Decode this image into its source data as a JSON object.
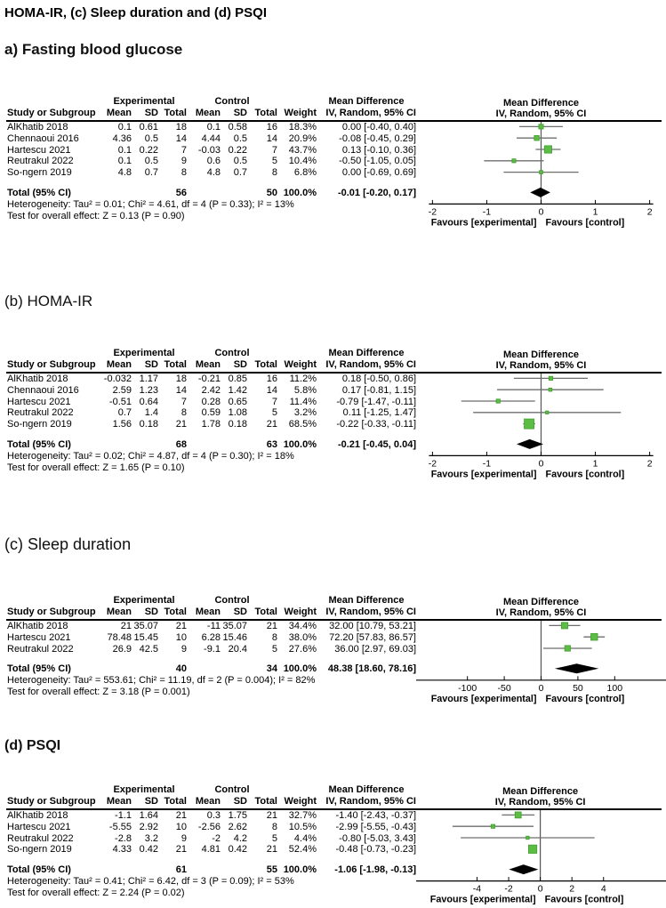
{
  "figure_title": "HOMA-IR, (c) Sleep duration and (d) PSQI",
  "colors": {
    "square_fill": "#5bbd44",
    "square_stroke": "#3f9e2c",
    "ci_line": "#6e6e6e",
    "zero_line": "#555555",
    "axis": "#000000",
    "diamond": "#000000"
  },
  "panels": [
    {
      "heading": "a) Fasting blood glucose",
      "group_headers": {
        "experimental": "Experimental",
        "control": "Control",
        "mean_difference": "Mean Difference"
      },
      "col_headers": [
        "Study or Subgroup",
        "Mean",
        "SD",
        "Total",
        "Mean",
        "SD",
        "Total",
        "Weight",
        "IV, Random, 95% CI"
      ],
      "plot_header": [
        "Mean Difference",
        "IV, Random, 95% CI"
      ],
      "rows": [
        {
          "study": "AlKhatib 2018",
          "mean_e": "0.1",
          "sd_e": "0.61",
          "total_e": "18",
          "mean_c": "0.1",
          "sd_c": "0.58",
          "total_c": "16",
          "weight": "18.3%",
          "ci": "0.00 [-0.40, 0.40]"
        },
        {
          "study": "Chennaoui 2016",
          "mean_e": "4.36",
          "sd_e": "0.5",
          "total_e": "14",
          "mean_c": "4.44",
          "sd_c": "0.5",
          "total_c": "14",
          "weight": "20.9%",
          "ci": "-0.08 [-0.45, 0.29]"
        },
        {
          "study": "Hartescu 2021",
          "mean_e": "0.1",
          "sd_e": "0.22",
          "total_e": "7",
          "mean_c": "-0.03",
          "sd_c": "0.22",
          "total_c": "7",
          "weight": "43.7%",
          "ci": "0.13 [-0.10, 0.36]"
        },
        {
          "study": "Reutrakul 2022",
          "mean_e": "0.1",
          "sd_e": "0.5",
          "total_e": "9",
          "mean_c": "0.6",
          "sd_c": "0.5",
          "total_c": "5",
          "weight": "10.4%",
          "ci": "-0.50 [-1.05, 0.05]"
        },
        {
          "study": "So-ngern 2019",
          "mean_e": "4.8",
          "sd_e": "0.7",
          "total_e": "8",
          "mean_c": "4.8",
          "sd_c": "0.7",
          "total_c": "8",
          "weight": "6.8%",
          "ci": "0.00 [-0.69, 0.69]"
        }
      ],
      "total": {
        "label": "Total (95% CI)",
        "total_e": "56",
        "total_c": "50",
        "weight": "100.0%",
        "ci": "-0.01 [-0.20, 0.17]"
      },
      "heterogeneity": "Heterogeneity: Tau² = 0.01; Chi² = 4.61, df = 4 (P = 0.33); I² = 13%",
      "overall_effect": "Test for overall effect: Z = 0.13 (P = 0.90)"
    },
    {
      "heading": "(b) HOMA-IR",
      "group_headers": {
        "experimental": "Experimental",
        "control": "Control",
        "mean_difference": "Mean Difference"
      },
      "col_headers": [
        "Study or Subgroup",
        "Mean",
        "SD",
        "Total",
        "Mean",
        "SD",
        "Total",
        "Weight",
        "IV, Random, 95% CI"
      ],
      "plot_header": [
        "Mean Difference",
        "IV, Random, 95% CI"
      ],
      "rows": [
        {
          "study": "AlKhatib 2018",
          "mean_e": "-0.032",
          "sd_e": "1.17",
          "total_e": "18",
          "mean_c": "-0.21",
          "sd_c": "0.85",
          "total_c": "16",
          "weight": "11.2%",
          "ci": "0.18 [-0.50, 0.86]"
        },
        {
          "study": "Chennaoui 2016",
          "mean_e": "2.59",
          "sd_e": "1.23",
          "total_e": "14",
          "mean_c": "2.42",
          "sd_c": "1.42",
          "total_c": "14",
          "weight": "5.8%",
          "ci": "0.17 [-0.81, 1.15]"
        },
        {
          "study": "Hartescu 2021",
          "mean_e": "-0.51",
          "sd_e": "0.64",
          "total_e": "7",
          "mean_c": "0.28",
          "sd_c": "0.65",
          "total_c": "7",
          "weight": "11.4%",
          "ci": "-0.79 [-1.47, -0.11]"
        },
        {
          "study": "Reutrakul 2022",
          "mean_e": "0.7",
          "sd_e": "1.4",
          "total_e": "8",
          "mean_c": "0.59",
          "sd_c": "1.08",
          "total_c": "5",
          "weight": "3.2%",
          "ci": "0.11 [-1.25, 1.47]"
        },
        {
          "study": "So-ngern 2019",
          "mean_e": "1.56",
          "sd_e": "0.18",
          "total_e": "21",
          "mean_c": "1.78",
          "sd_c": "0.18",
          "total_c": "21",
          "weight": "68.5%",
          "ci": "-0.22 [-0.33, -0.11]"
        }
      ],
      "total": {
        "label": "Total (95% CI)",
        "total_e": "68",
        "total_c": "63",
        "weight": "100.0%",
        "ci": "-0.21 [-0.45, 0.04]"
      },
      "heterogeneity": "Heterogeneity: Tau² = 0.02; Chi² = 4.87, df = 4 (P = 0.30); I² = 18%",
      "overall_effect": "Test for overall effect: Z = 1.65 (P = 0.10)"
    },
    {
      "heading": "(c) Sleep duration",
      "group_headers": {
        "experimental": "Experimental",
        "control": "Control",
        "mean_difference": "Mean Difference"
      },
      "col_headers": [
        "Study or Subgroup",
        "Mean",
        "SD",
        "Total",
        "Mean",
        "SD",
        "Total",
        "Weight",
        "IV, Random, 95% CI"
      ],
      "plot_header": [
        "Mean Difference",
        "IV, Random, 95% CI"
      ],
      "rows": [
        {
          "study": "AlKhatib 2018",
          "mean_e": "21",
          "sd_e": "35.07",
          "total_e": "21",
          "mean_c": "-11",
          "sd_c": "35.07",
          "total_c": "21",
          "weight": "34.4%",
          "ci": "32.00 [10.79, 53.21]"
        },
        {
          "study": "Hartescu 2021",
          "mean_e": "78.48",
          "sd_e": "15.45",
          "total_e": "10",
          "mean_c": "6.28",
          "sd_c": "15.46",
          "total_c": "8",
          "weight": "38.0%",
          "ci": "72.20 [57.83, 86.57]"
        },
        {
          "study": "Reutrakul 2022",
          "mean_e": "26.9",
          "sd_e": "42.5",
          "total_e": "9",
          "mean_c": "-9.1",
          "sd_c": "20.4",
          "total_c": "5",
          "weight": "27.6%",
          "ci": "36.00 [2.97, 69.03]"
        }
      ],
      "total": {
        "label": "Total (95% CI)",
        "total_e": "40",
        "total_c": "34",
        "weight": "100.0%",
        "ci": "48.38 [18.60, 78.16]"
      },
      "heterogeneity": "Heterogeneity: Tau² = 553.61; Chi² = 11.19, df = 2 (P = 0.004); I² = 82%",
      "overall_effect": "Test for overall effect: Z = 3.18 (P = 0.001)"
    },
    {
      "heading": "(d) PSQI",
      "group_headers": {
        "experimental": "Experimental",
        "control": "Control",
        "mean_difference": "Mean Difference"
      },
      "col_headers": [
        "Study or Subgroup",
        "Mean",
        "SD",
        "Total",
        "Mean",
        "SD",
        "Total",
        "Weight",
        "IV, Random, 95% CI"
      ],
      "plot_header": [
        "Mean Difference",
        "IV, Random, 95% CI"
      ],
      "rows": [
        {
          "study": "AlKhatib 2018",
          "mean_e": "-1.1",
          "sd_e": "1.64",
          "total_e": "21",
          "mean_c": "0.3",
          "sd_c": "1.75",
          "total_c": "21",
          "weight": "32.7%",
          "ci": "-1.40 [-2.43, -0.37]"
        },
        {
          "study": "Hartescu 2021",
          "mean_e": "-5.55",
          "sd_e": "2.92",
          "total_e": "10",
          "mean_c": "-2.56",
          "sd_c": "2.62",
          "total_c": "8",
          "weight": "10.5%",
          "ci": "-2.99 [-5.55, -0.43]"
        },
        {
          "study": "Reutrakul 2022",
          "mean_e": "-2.8",
          "sd_e": "3.2",
          "total_e": "9",
          "mean_c": "-2",
          "sd_c": "4.2",
          "total_c": "5",
          "weight": "4.4%",
          "ci": "-0.80 [-5.03, 3.43]"
        },
        {
          "study": "So-ngern 2019",
          "mean_e": "4.33",
          "sd_e": "0.42",
          "total_e": "21",
          "mean_c": "4.81",
          "sd_c": "0.42",
          "total_c": "21",
          "weight": "52.4%",
          "ci": "-0.48 [-0.73, -0.23]"
        }
      ],
      "total": {
        "label": "Total (95% CI)",
        "total_e": "61",
        "total_c": "55",
        "weight": "100.0%",
        "ci": "-1.06 [-1.98, -0.13]"
      },
      "heterogeneity": "Heterogeneity: Tau² = 0.41; Chi² = 6.42, df = 3 (P = 0.09); I² = 53%",
      "overall_effect": "Test for overall effect: Z = 2.24 (P = 0.02)"
    }
  ],
  "chart_data": [
    {
      "type": "forest",
      "outcome": "Fasting blood glucose",
      "effect_measure": "Mean Difference, IV, Random, 95% CI",
      "entries": [
        {
          "label": "AlKhatib 2018",
          "md": 0.0,
          "lo": -0.4,
          "hi": 0.4,
          "weight_pct": 18.3
        },
        {
          "label": "Chennaoui 2016",
          "md": -0.08,
          "lo": -0.45,
          "hi": 0.29,
          "weight_pct": 20.9
        },
        {
          "label": "Hartescu 2021",
          "md": 0.13,
          "lo": -0.1,
          "hi": 0.36,
          "weight_pct": 43.7
        },
        {
          "label": "Reutrakul 2022",
          "md": -0.5,
          "lo": -1.05,
          "hi": 0.05,
          "weight_pct": 10.4
        },
        {
          "label": "So-ngern 2019",
          "md": 0.0,
          "lo": -0.69,
          "hi": 0.69,
          "weight_pct": 6.8
        }
      ],
      "total": {
        "md": -0.01,
        "lo": -0.2,
        "hi": 0.17
      },
      "xticks": [
        -2,
        -1,
        0,
        1,
        2
      ],
      "xlim": [
        -2.17,
        2.17
      ],
      "axis_edge_to_edge": false,
      "favours_left": "Favours [experimental]",
      "favours_right": "Favours [control]"
    },
    {
      "type": "forest",
      "outcome": "HOMA-IR",
      "effect_measure": "Mean Difference, IV, Random, 95% CI",
      "entries": [
        {
          "label": "AlKhatib 2018",
          "md": 0.18,
          "lo": -0.5,
          "hi": 0.86,
          "weight_pct": 11.2
        },
        {
          "label": "Chennaoui 2016",
          "md": 0.17,
          "lo": -0.81,
          "hi": 1.15,
          "weight_pct": 5.8
        },
        {
          "label": "Hartescu 2021",
          "md": -0.79,
          "lo": -1.47,
          "hi": -0.11,
          "weight_pct": 11.4
        },
        {
          "label": "Reutrakul 2022",
          "md": 0.11,
          "lo": -1.25,
          "hi": 1.47,
          "weight_pct": 3.2
        },
        {
          "label": "So-ngern 2019",
          "md": -0.22,
          "lo": -0.33,
          "hi": -0.11,
          "weight_pct": 68.5
        }
      ],
      "total": {
        "md": -0.21,
        "lo": -0.45,
        "hi": 0.04
      },
      "xticks": [
        -2,
        -1,
        0,
        1,
        2
      ],
      "xlim": [
        -2.17,
        2.17
      ],
      "axis_edge_to_edge": false,
      "favours_left": "Favours [experimental]",
      "favours_right": "Favours [control]"
    },
    {
      "type": "forest",
      "outcome": "Sleep duration",
      "effect_measure": "Mean Difference, IV, Random, 95% CI",
      "entries": [
        {
          "label": "AlKhatib 2018",
          "md": 32.0,
          "lo": 10.79,
          "hi": 53.21,
          "weight_pct": 34.4
        },
        {
          "label": "Hartescu 2021",
          "md": 72.2,
          "lo": 57.83,
          "hi": 86.57,
          "weight_pct": 38.0
        },
        {
          "label": "Reutrakul 2022",
          "md": 36.0,
          "lo": 2.97,
          "hi": 69.03,
          "weight_pct": 27.6
        }
      ],
      "total": {
        "md": 48.38,
        "lo": 18.6,
        "hi": 78.16
      },
      "xticks": [
        -100,
        -50,
        0,
        50,
        100
      ],
      "xlim": [
        -160,
        160
      ],
      "axis_edge_to_edge": true,
      "favours_left": "Favours [experimental]",
      "favours_right": "Favours [control]"
    },
    {
      "type": "forest",
      "outcome": "PSQI",
      "effect_measure": "Mean Difference, IV, Random, 95% CI",
      "entries": [
        {
          "label": "AlKhatib 2018",
          "md": -1.4,
          "lo": -2.43,
          "hi": -0.37,
          "weight_pct": 32.7
        },
        {
          "label": "Hartescu 2021",
          "md": -2.99,
          "lo": -5.55,
          "hi": -0.43,
          "weight_pct": 10.5
        },
        {
          "label": "Reutrakul 2022",
          "md": -0.8,
          "lo": -5.03,
          "hi": 3.43,
          "weight_pct": 4.4
        },
        {
          "label": "So-ngern 2019",
          "md": -0.48,
          "lo": -0.73,
          "hi": -0.23,
          "weight_pct": 52.4
        }
      ],
      "total": {
        "md": -1.06,
        "lo": -1.98,
        "hi": -0.13
      },
      "xticks": [
        -4,
        -2,
        0,
        2,
        4
      ],
      "xlim": [
        -7.4,
        7.5
      ],
      "axis_edge_to_edge": true,
      "favours_left": "Favours [experimental]",
      "favours_right": "Favours [control]"
    }
  ]
}
